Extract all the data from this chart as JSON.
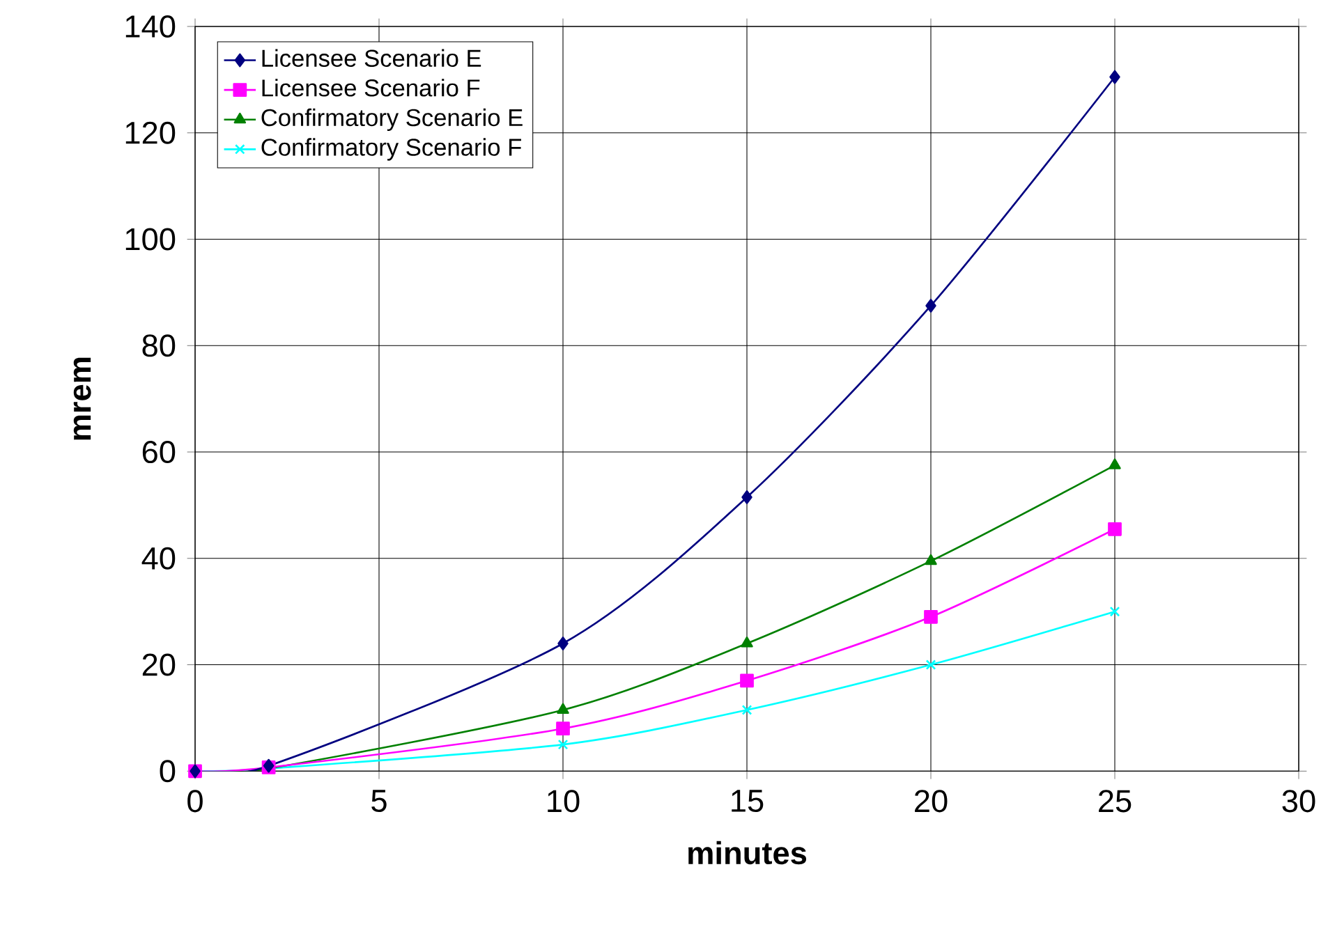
{
  "chart_data": {
    "type": "line",
    "xlabel": "minutes",
    "ylabel": "mrem",
    "xlim": [
      0,
      30
    ],
    "ylim": [
      0,
      140
    ],
    "xticks": [
      0,
      5,
      10,
      15,
      20,
      25,
      30
    ],
    "yticks": [
      0,
      20,
      40,
      60,
      80,
      100,
      120,
      140
    ],
    "grid": true,
    "legend": "top left",
    "x": [
      0,
      2,
      10,
      15,
      20,
      25
    ],
    "series": [
      {
        "name": "Licensee Scenario E",
        "color": "#000080",
        "marker": "diamond",
        "values": [
          0,
          1,
          24,
          51.5,
          87.5,
          130.5
        ]
      },
      {
        "name": "Licensee Scenario F",
        "color": "#ff00ff",
        "marker": "square",
        "values": [
          0,
          0.7,
          8,
          17,
          29,
          45.5
        ]
      },
      {
        "name": "Confirmatory Scenario E",
        "color": "#008000",
        "marker": "triangle",
        "values": [
          0,
          0.5,
          11.5,
          24,
          39.5,
          57.5
        ]
      },
      {
        "name": "Confirmatory Scenario F",
        "color": "#00ffff",
        "marker": "cross",
        "values": [
          0,
          0.5,
          5,
          11.5,
          20,
          30
        ]
      }
    ]
  }
}
